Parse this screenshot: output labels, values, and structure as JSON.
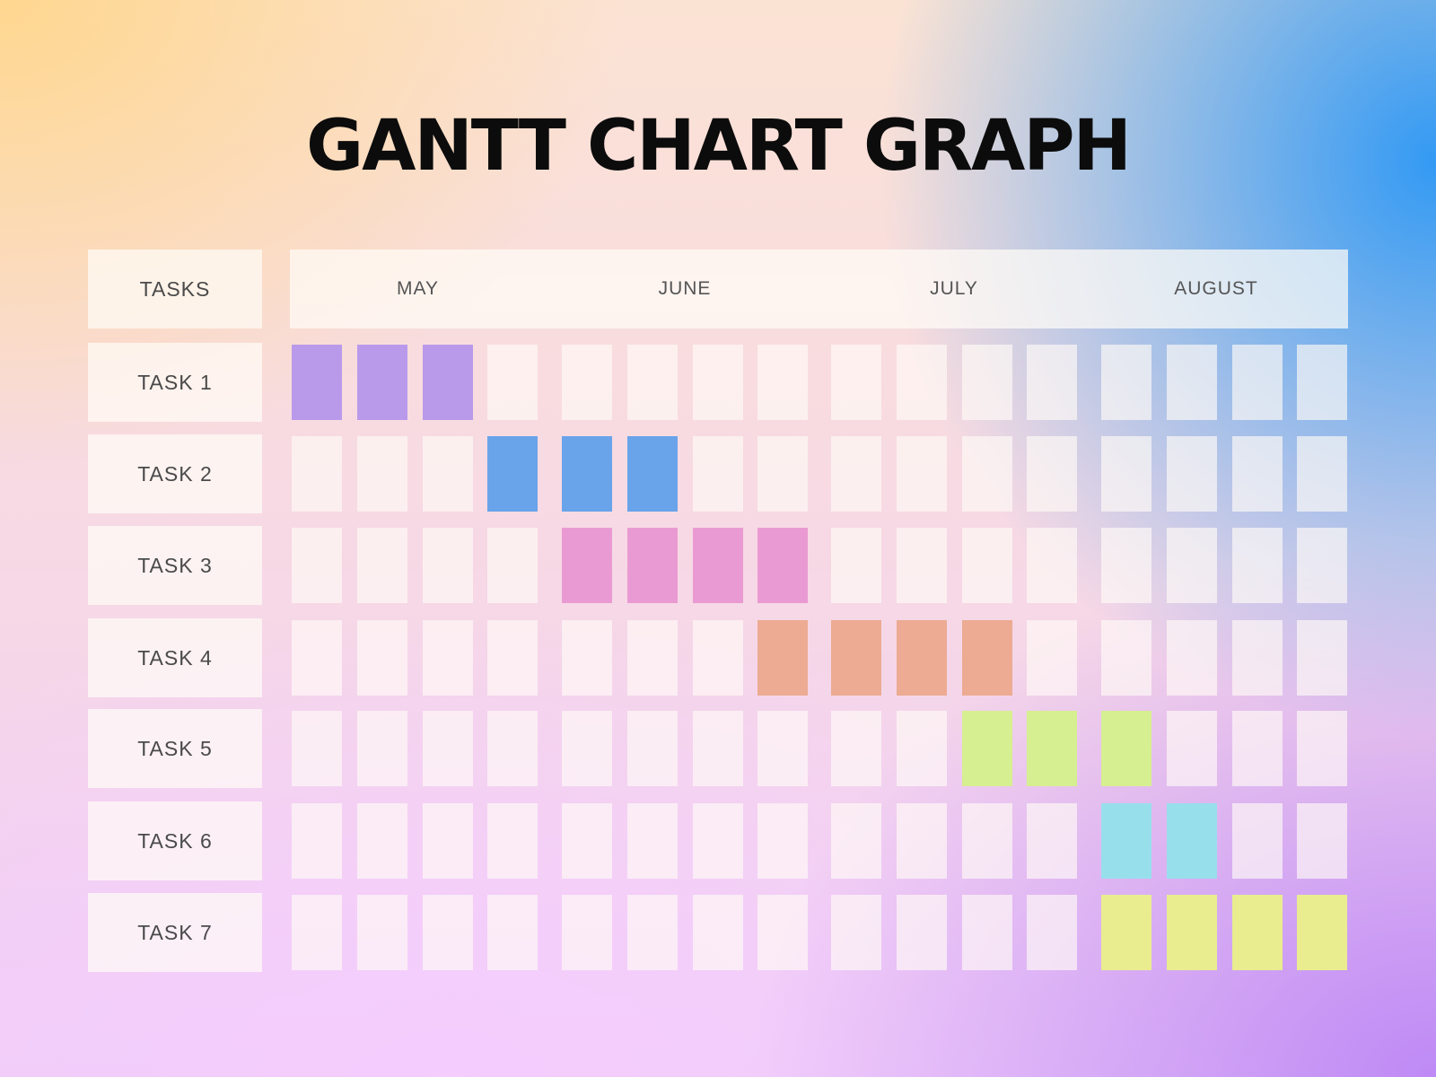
{
  "title": "GANTT CHART GRAPH",
  "chart_data": {
    "type": "gantt",
    "title": "GANTT CHART GRAPH",
    "row_header": "TASKS",
    "periods": [
      "MAY",
      "JUNE",
      "JULY",
      "AUGUST"
    ],
    "slots_per_period": 4,
    "total_slots": 16,
    "tasks": [
      {
        "name": "TASK 1",
        "start": 1,
        "end": 3,
        "color": "#b99aea"
      },
      {
        "name": "TASK 2",
        "start": 4,
        "end": 6,
        "color": "#69a3ea"
      },
      {
        "name": "TASK 3",
        "start": 5,
        "end": 8,
        "color": "#ea9ad2"
      },
      {
        "name": "TASK 4",
        "start": 8,
        "end": 11,
        "color": "#ecab92"
      },
      {
        "name": "TASK 5",
        "start": 11,
        "end": 13,
        "color": "#d6ef90"
      },
      {
        "name": "TASK 6",
        "start": 13,
        "end": 14,
        "color": "#98dfec"
      },
      {
        "name": "TASK 7",
        "start": 13,
        "end": 16,
        "color": "#e9ed8f"
      }
    ]
  }
}
